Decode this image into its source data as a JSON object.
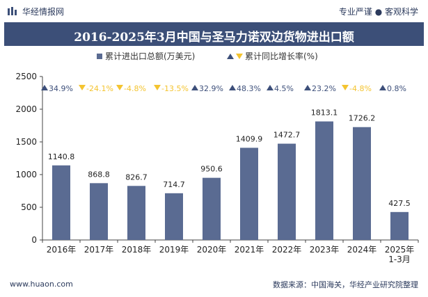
{
  "header": {
    "brand": "华经情报网",
    "slogan": "专业严谨 ● 客观科学"
  },
  "footer": {
    "website": "www.huaon.com",
    "source": "数据来源：中国海关，华经产业研究院整理"
  },
  "colors": {
    "bar": "#5a6b92",
    "title_bg": "#3c4f78",
    "up": "#3d4f7a",
    "down": "#f4c430"
  },
  "chart_data": {
    "type": "bar",
    "title": "2016-2025年3月中国与圣马力诺双边货物进出口额",
    "legend": {
      "bar_label": "累计进出口总额(万美元)",
      "line_label": "累计同比增长率(%)"
    },
    "categories": [
      "2016年",
      "2017年",
      "2018年",
      "2019年",
      "2020年",
      "2021年",
      "2022年",
      "2023年",
      "2024年",
      "2025年1-3月"
    ],
    "category_lines": [
      [
        "2016年"
      ],
      [
        "2017年"
      ],
      [
        "2018年"
      ],
      [
        "2019年"
      ],
      [
        "2020年"
      ],
      [
        "2021年"
      ],
      [
        "2022年"
      ],
      [
        "2023年"
      ],
      [
        "2024年"
      ],
      [
        "2025年",
        "1-3月"
      ]
    ],
    "series": [
      {
        "name": "累计进出口总额(万美元)",
        "values": [
          1140.8,
          868.8,
          826.7,
          714.7,
          950.6,
          1409.9,
          1472.7,
          1813.1,
          1726.2,
          427.5
        ],
        "labels": [
          "1140.8",
          "868.8",
          "826.7",
          "714.7",
          "950.6",
          "1409.9",
          "1472.7",
          "1813.1",
          "1726.2",
          "427.5"
        ]
      },
      {
        "name": "累计同比增长率(%)",
        "values": [
          34.9,
          -24.1,
          -4.8,
          -13.5,
          32.9,
          48.3,
          4.5,
          23.2,
          -4.8,
          0.8
        ],
        "labels": [
          "34.9%",
          "-24.1%",
          "-4.8%",
          "-13.5%",
          "32.9%",
          "48.3%",
          "4.5%",
          "23.2%",
          "-4.8%",
          "0.8%"
        ]
      }
    ],
    "y_ticks": [
      0,
      500,
      1000,
      1500,
      2000,
      2500
    ],
    "ylim": [
      0,
      2500
    ],
    "grid": false,
    "legend_position": "top-center"
  }
}
